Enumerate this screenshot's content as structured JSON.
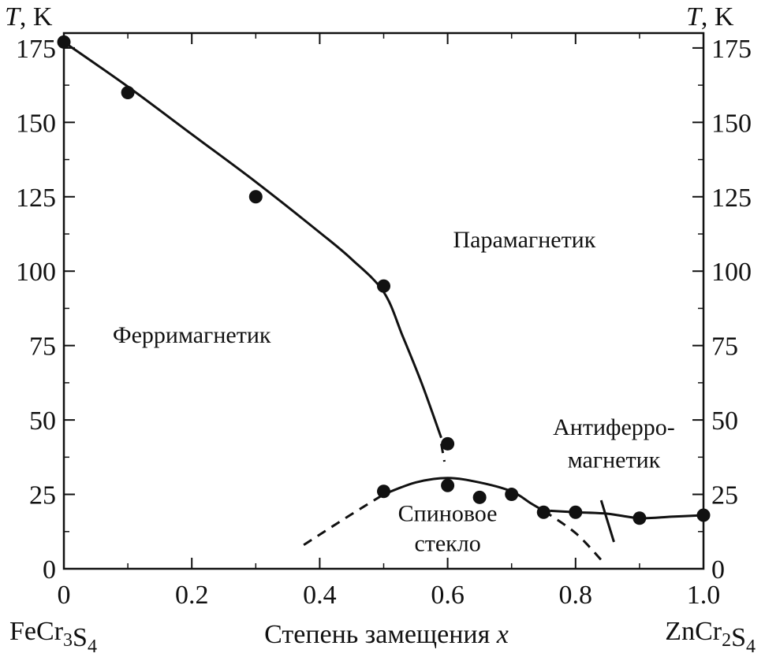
{
  "chart_data": {
    "type": "scatter",
    "xlabel": "Степень замещения x",
    "ylabel_left": "T, K",
    "ylabel_right": "T, K",
    "xlim": [
      0,
      1.0
    ],
    "ylim": [
      0,
      180
    ],
    "x_ticks": [
      {
        "value": 0,
        "label": "0"
      },
      {
        "value": 0.2,
        "label": "0.2"
      },
      {
        "value": 0.4,
        "label": "0.4"
      },
      {
        "value": 0.6,
        "label": "0.6"
      },
      {
        "value": 0.8,
        "label": "0.8"
      },
      {
        "value": 1.0,
        "label": "1.0"
      }
    ],
    "y_ticks": [
      {
        "value": 0,
        "label": "0"
      },
      {
        "value": 25,
        "label": "25"
      },
      {
        "value": 50,
        "label": "50"
      },
      {
        "value": 75,
        "label": "75"
      },
      {
        "value": 100,
        "label": "100"
      },
      {
        "value": 125,
        "label": "125"
      },
      {
        "value": 150,
        "label": "150"
      },
      {
        "value": 175,
        "label": "175"
      }
    ],
    "x_end_labels": {
      "left": "FeCr₃S₄",
      "right": "ZnCr₂S₄"
    },
    "grid": false,
    "points": [
      {
        "x": 0.0,
        "y": 177
      },
      {
        "x": 0.1,
        "y": 160
      },
      {
        "x": 0.3,
        "y": 125
      },
      {
        "x": 0.5,
        "y": 95
      },
      {
        "x": 0.6,
        "y": 42
      },
      {
        "x": 0.5,
        "y": 26
      },
      {
        "x": 0.6,
        "y": 28
      },
      {
        "x": 0.65,
        "y": 24
      },
      {
        "x": 0.7,
        "y": 25
      },
      {
        "x": 0.75,
        "y": 19
      },
      {
        "x": 0.8,
        "y": 19
      },
      {
        "x": 0.9,
        "y": 17
      },
      {
        "x": 1.0,
        "y": 18
      }
    ],
    "curves": [
      {
        "style": "solid",
        "points": [
          [
            0.0,
            177
          ],
          [
            0.1,
            162
          ],
          [
            0.2,
            146
          ],
          [
            0.3,
            130
          ],
          [
            0.4,
            113
          ],
          [
            0.45,
            104
          ],
          [
            0.5,
            93
          ],
          [
            0.53,
            78
          ],
          [
            0.56,
            62
          ],
          [
            0.59,
            44
          ]
        ]
      },
      {
        "style": "dashed",
        "points": [
          [
            0.59,
            42
          ],
          [
            0.595,
            36
          ]
        ]
      },
      {
        "style": "solid",
        "points": [
          [
            0.5,
            25
          ],
          [
            0.55,
            29
          ],
          [
            0.6,
            30.5
          ],
          [
            0.65,
            29
          ],
          [
            0.7,
            26
          ],
          [
            0.73,
            22
          ],
          [
            0.75,
            19.5
          ]
        ]
      },
      {
        "style": "dashed",
        "points": [
          [
            0.375,
            8
          ],
          [
            0.44,
            17
          ],
          [
            0.5,
            25
          ]
        ]
      },
      {
        "style": "dashed",
        "points": [
          [
            0.75,
            19.5
          ],
          [
            0.8,
            12
          ],
          [
            0.84,
            3
          ]
        ]
      },
      {
        "style": "solid",
        "points": [
          [
            0.76,
            19.5
          ],
          [
            0.8,
            19
          ],
          [
            0.85,
            18.5
          ],
          [
            0.9,
            17
          ],
          [
            0.95,
            17.5
          ],
          [
            1.0,
            18
          ]
        ]
      },
      {
        "style": "solid",
        "points": [
          [
            0.86,
            9
          ],
          [
            0.84,
            23
          ]
        ]
      }
    ],
    "annotations": [
      {
        "text": "Парамагнетик",
        "x": 0.72,
        "y": 108
      },
      {
        "text": "Ферримагнетик",
        "x": 0.2,
        "y": 76
      },
      {
        "text": "Антиферро-",
        "x": 0.86,
        "y": 45
      },
      {
        "text": "магнетик",
        "x": 0.86,
        "y": 34
      },
      {
        "text": "Спиновое",
        "x": 0.6,
        "y": 16
      },
      {
        "text": "стекло",
        "x": 0.6,
        "y": 6
      }
    ]
  }
}
